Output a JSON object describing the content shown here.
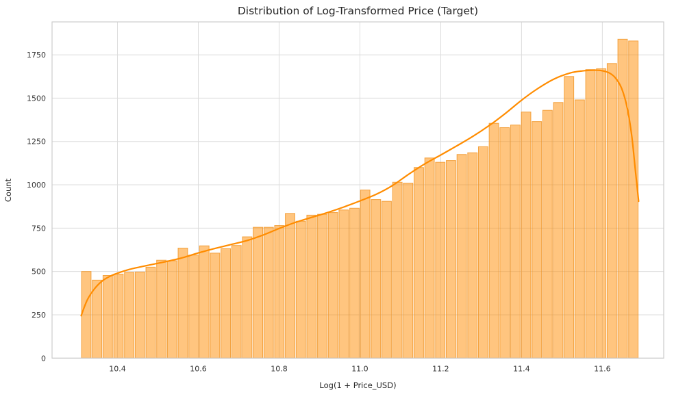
{
  "chart_data": {
    "type": "bar",
    "subtype": "histogram_with_kde",
    "title": "Distribution of Log-Transformed Price (Target)",
    "xlabel": "Log(1 + Price_USD)",
    "ylabel": "Count",
    "grid": true,
    "legend": null,
    "xlim": [
      10.238,
      11.752
    ],
    "ylim": [
      0,
      1940
    ],
    "xticks": [
      10.4,
      10.6,
      10.8,
      11.0,
      11.2,
      11.4,
      11.6
    ],
    "yticks": [
      0,
      250,
      500,
      750,
      1000,
      1250,
      1500,
      1750
    ],
    "bin_start": 10.3095,
    "bin_width": 0.02655,
    "bar_values": [
      500,
      450,
      477,
      485,
      495,
      497,
      525,
      565,
      562,
      635,
      595,
      648,
      606,
      632,
      650,
      700,
      755,
      755,
      765,
      835,
      790,
      825,
      830,
      840,
      855,
      865,
      970,
      915,
      905,
      1015,
      1010,
      1100,
      1155,
      1130,
      1140,
      1175,
      1185,
      1220,
      1355,
      1330,
      1345,
      1420,
      1365,
      1430,
      1475,
      1625,
      1490,
      1665,
      1670,
      1700,
      1840,
      1830
    ],
    "kde_series": {
      "name": "kde-curve",
      "x": [
        10.31,
        10.325,
        10.343,
        10.362,
        10.381,
        10.4,
        10.43,
        10.46,
        10.495,
        10.53,
        10.565,
        10.6,
        10.64,
        10.68,
        10.72,
        10.76,
        10.8,
        10.84,
        10.88,
        10.92,
        10.96,
        11.0,
        11.04,
        11.08,
        11.12,
        11.16,
        11.2,
        11.24,
        11.28,
        11.32,
        11.36,
        11.4,
        11.44,
        11.48,
        11.52,
        11.55,
        11.575,
        11.595,
        11.615,
        11.632,
        11.648,
        11.662,
        11.673,
        11.682,
        11.69
      ],
      "y": [
        245,
        335,
        400,
        445,
        472,
        490,
        512,
        528,
        545,
        562,
        582,
        607,
        632,
        655,
        678,
        710,
        748,
        783,
        812,
        840,
        872,
        907,
        945,
        995,
        1060,
        1120,
        1172,
        1225,
        1280,
        1342,
        1412,
        1488,
        1555,
        1610,
        1645,
        1657,
        1661,
        1660,
        1648,
        1618,
        1555,
        1440,
        1280,
        1080,
        905
      ]
    },
    "colors": {
      "bar_fill": "rgba(255,140,0,0.5)",
      "bar_edge": "rgba(240,145,30,0.8)",
      "kde_line": "#ff8c00",
      "grid_line": "#dcdcdc",
      "spine": "#cccccc",
      "tick_text": "#333333",
      "title_text": "#262626"
    }
  }
}
